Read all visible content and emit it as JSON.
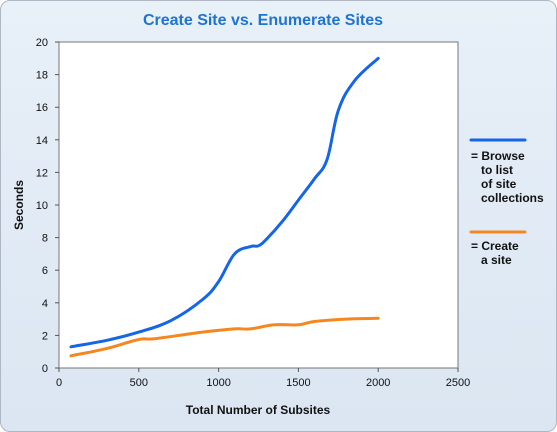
{
  "chart_data": {
    "type": "line",
    "title": "Create Site vs. Enumerate Sites",
    "xlabel": "Total Number of Subsites",
    "ylabel": "Seconds",
    "xlim": [
      0,
      2500
    ],
    "ylim": [
      0,
      20
    ],
    "xticks": [
      0,
      500,
      1000,
      1500,
      2000,
      2500
    ],
    "yticks": [
      0,
      2,
      4,
      6,
      8,
      10,
      12,
      14,
      16,
      18,
      20
    ],
    "grid": false,
    "legend_position": "right",
    "series": [
      {
        "name": "= Browse to list of site collections",
        "legend_lines": [
          "= Browse",
          "to list",
          "of site",
          "collections"
        ],
        "color": "#1565e8",
        "x": [
          75,
          300,
          500,
          700,
          900,
          1000,
          1100,
          1200,
          1250,
          1300,
          1400,
          1500,
          1600,
          1680,
          1750,
          1850,
          2000
        ],
        "y": [
          1.3,
          1.7,
          2.2,
          2.9,
          4.2,
          5.3,
          7.0,
          7.45,
          7.5,
          7.9,
          9.0,
          10.3,
          11.6,
          12.8,
          15.8,
          17.6,
          19.0
        ]
      },
      {
        "name": "= Create a site",
        "legend_lines": [
          "= Create",
          "a site"
        ],
        "color": "#f5871e",
        "x": [
          75,
          300,
          500,
          600,
          900,
          1100,
          1200,
          1350,
          1500,
          1600,
          1800,
          2000
        ],
        "y": [
          0.75,
          1.2,
          1.75,
          1.8,
          2.2,
          2.4,
          2.4,
          2.65,
          2.65,
          2.85,
          3.0,
          3.05
        ]
      }
    ]
  },
  "colors": {
    "title": "#1f73d1",
    "plot_background": "#ffffff",
    "axis": "#555555"
  }
}
